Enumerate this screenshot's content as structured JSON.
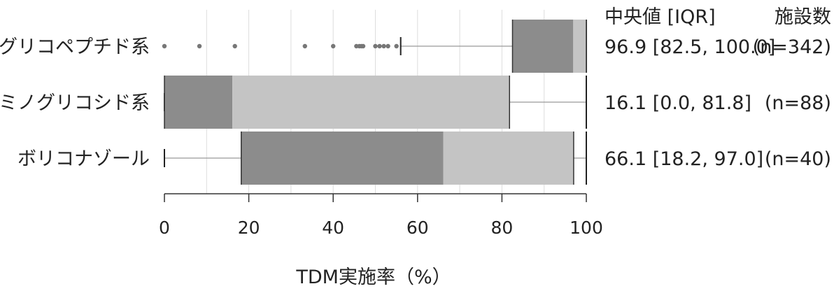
{
  "chart_data": {
    "type": "box",
    "orientation": "horizontal",
    "xlabel": "TDM実施率（%）",
    "xlim": [
      0,
      100
    ],
    "xticks": [
      "0",
      "20",
      "40",
      "60",
      "80",
      "100"
    ],
    "tick_values": [
      0,
      20,
      40,
      60,
      80,
      100
    ],
    "grid": true,
    "header": {
      "median_iqr": "中央値 [IQR]",
      "facilities": "施設数"
    },
    "colors": {
      "lower_box": "#8c8c8c",
      "upper_box": "#c4c4c4",
      "whisker": "#999999",
      "grid": "#dddddd",
      "outlier": "#777777"
    },
    "series": [
      {
        "category": "グリコペプチド系",
        "whisker_low": 56,
        "q1": 82.5,
        "median": 96.9,
        "q3": 100.0,
        "whisker_high": 100,
        "outliers": [
          0,
          8.3,
          16.7,
          33.3,
          40,
          45.5,
          46.2,
          46.7,
          47.1,
          50,
          51,
          52,
          53,
          55
        ],
        "stat_text": "96.9 [82.5, 100.0]",
        "n_text": "(n=342)"
      },
      {
        "category": "アミノグリコシド系",
        "whisker_low": 0,
        "q1": 0.0,
        "median": 16.1,
        "q3": 81.8,
        "whisker_high": 100,
        "outliers": [],
        "stat_text": "16.1 [0.0, 81.8]",
        "n_text": "(n=88)"
      },
      {
        "category": "ボリコナゾール",
        "whisker_low": 0,
        "q1": 18.2,
        "median": 66.1,
        "q3": 97.0,
        "whisker_high": 100,
        "outliers": [],
        "stat_text": "66.1 [18.2, 97.0]",
        "n_text": "(n=40)"
      }
    ]
  }
}
